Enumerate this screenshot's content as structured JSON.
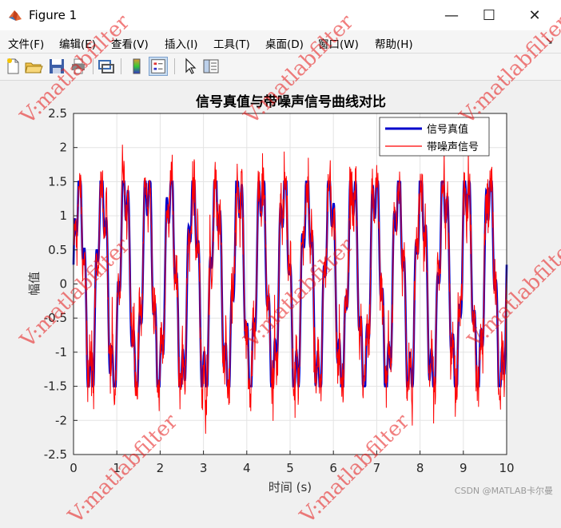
{
  "window": {
    "title": "Figure 1",
    "minimize": "—",
    "maximize": "☐",
    "close": "✕"
  },
  "menu": [
    "文件(F)",
    "编辑(E)",
    "查看(V)",
    "插入(I)",
    "工具(T)",
    "桌面(D)",
    "窗口(W)",
    "帮助(H)"
  ],
  "toolbar_icons": [
    "new-figure-icon",
    "open-file-icon",
    "save-icon",
    "print-icon",
    "link-plot-icon",
    "insert-colorbar-icon",
    "insert-legend-icon",
    "pointer-icon",
    "property-inspector-icon"
  ],
  "watermark": "V:matlabfilter",
  "credit": "CSDN @MATLAB卡尔曼",
  "colors": {
    "true_signal": "#0000cc",
    "noisy_signal": "#ff0000",
    "watermark": "#e61414"
  },
  "chart_data": {
    "type": "line",
    "title": "信号真值与带噪声信号曲线对比",
    "xlabel": "时间 (s)",
    "ylabel": "幅值",
    "xlim": [
      0,
      10
    ],
    "ylim": [
      -2.5,
      2.5
    ],
    "xticks": [
      "0",
      "1",
      "2",
      "3",
      "4",
      "5",
      "6",
      "7",
      "8",
      "9",
      "10"
    ],
    "yticks": [
      "2.5",
      "2",
      "1.5",
      "1",
      "0.5",
      "0",
      "-0.5",
      "-1",
      "-1.5",
      "-2",
      "-2.5"
    ],
    "grid": true,
    "legend_position": "top-right",
    "series": [
      {
        "name": "信号真值",
        "color": "#0000cc",
        "line_width": "thick",
        "expression": "signal clipped at ±1.5, approx 1.5·sin(2π·1.9t) + 0.5·sin(2π·8t), sampled 0–10 s"
      },
      {
        "name": "带噪声信号",
        "color": "#ff0000",
        "line_width": "thin",
        "expression": "true signal + noise, peaks reaching about 2.2 and -2.4"
      }
    ]
  }
}
